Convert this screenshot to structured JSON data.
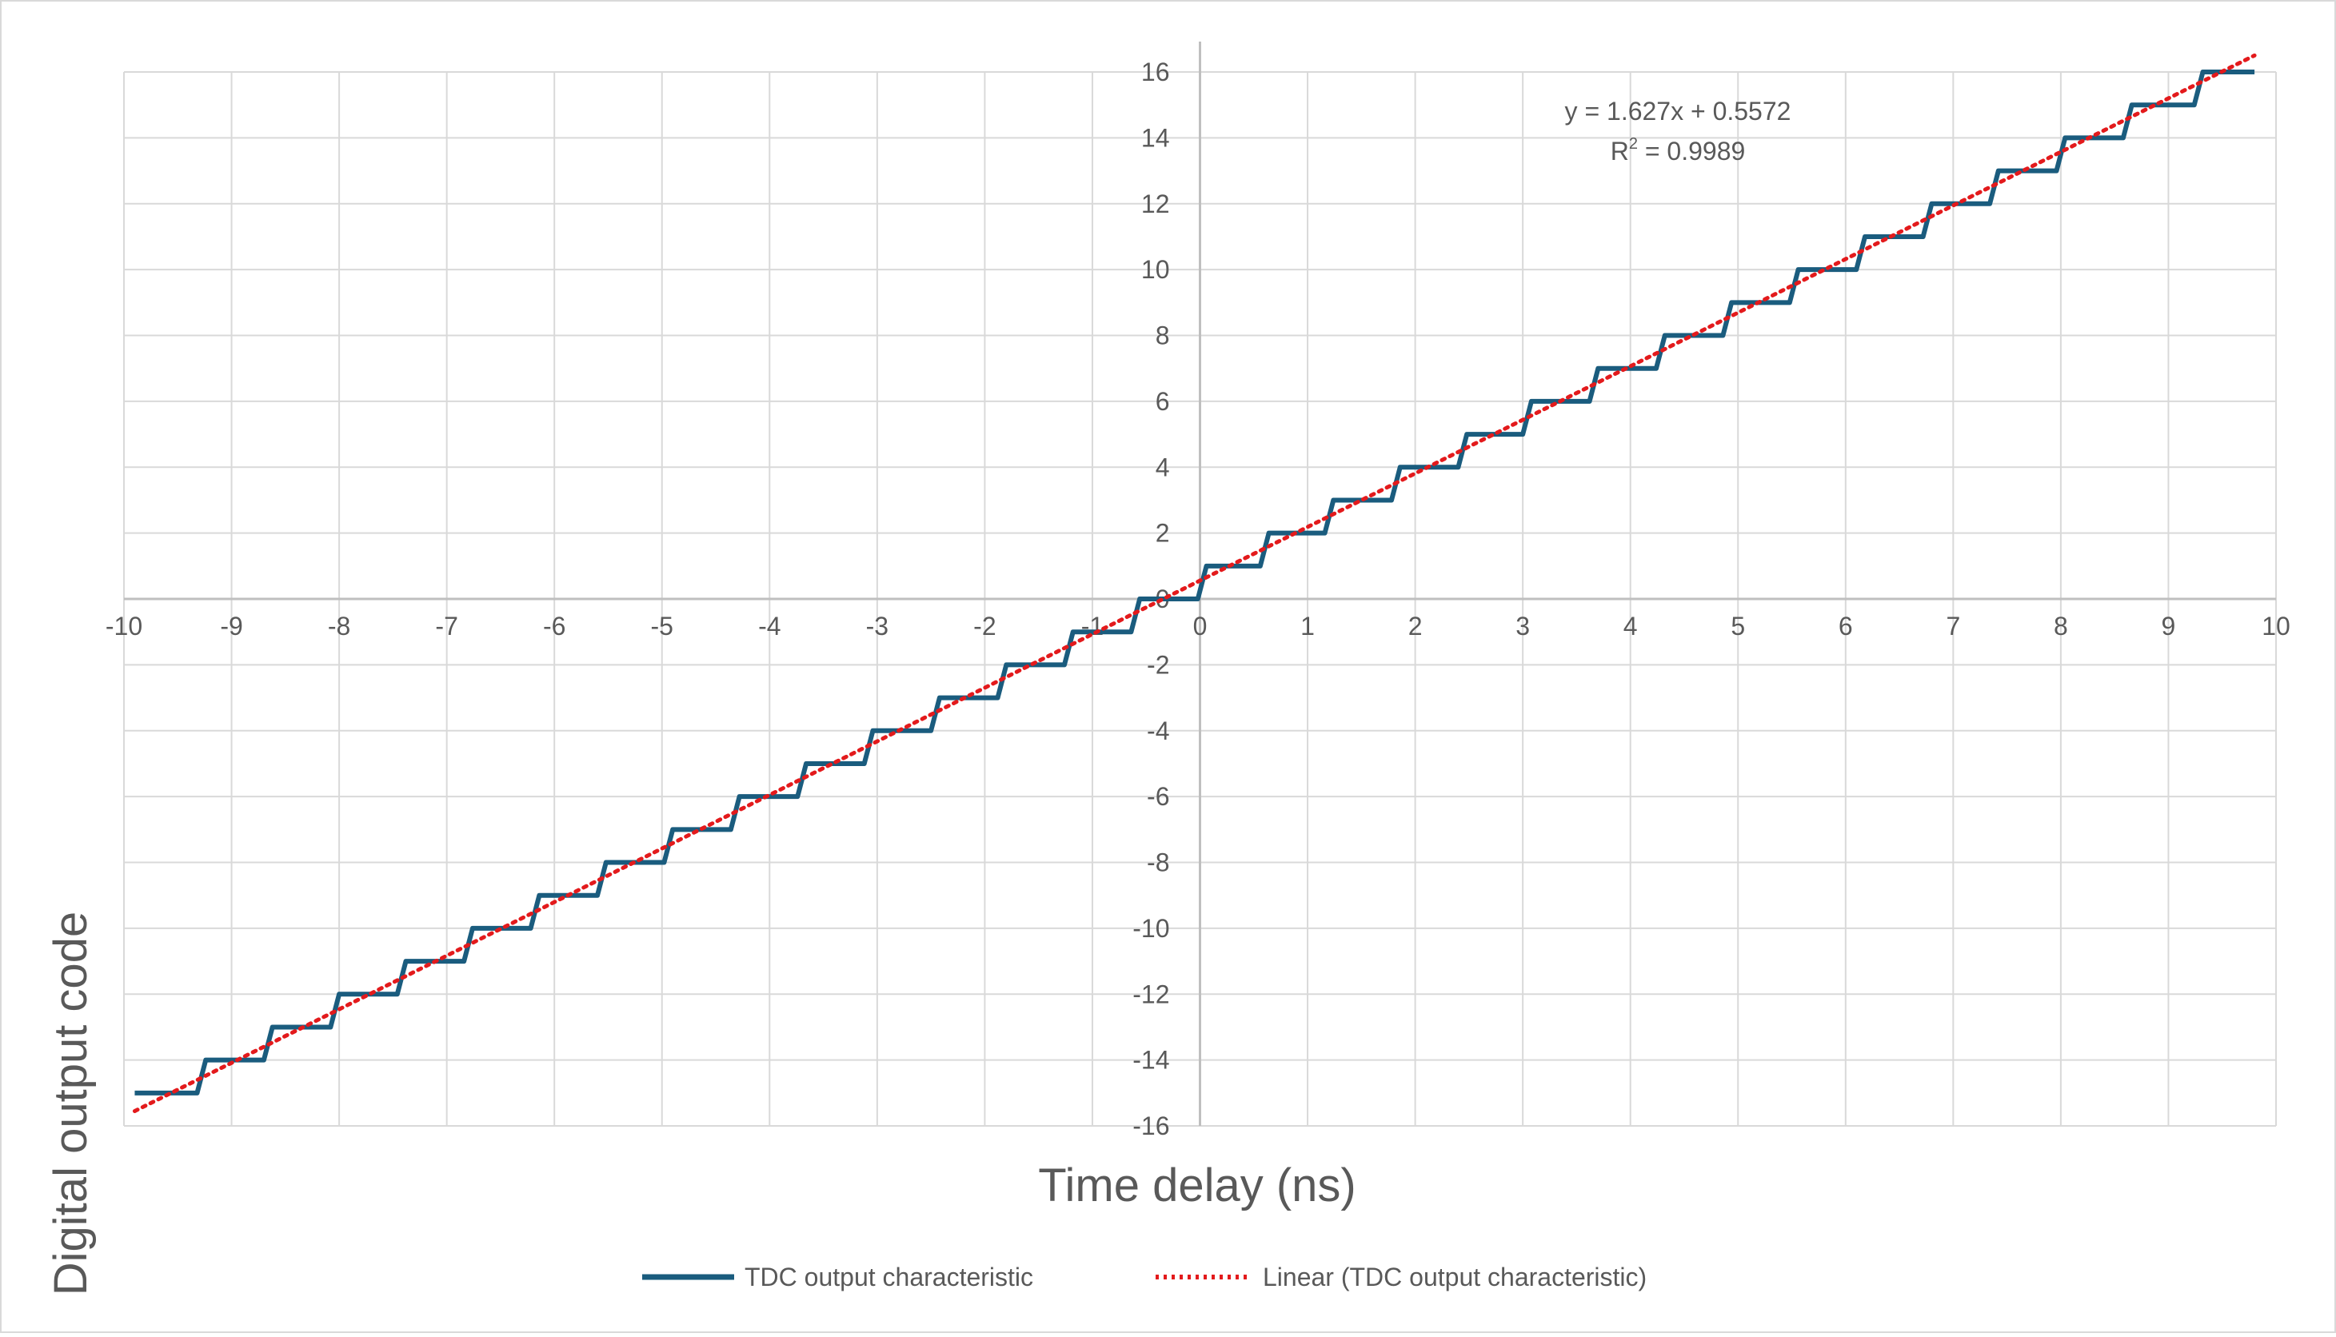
{
  "chart_data": {
    "type": "line",
    "title": "",
    "xlabel": "Time delay (ns)",
    "ylabel": "Digital output code",
    "xlim": [
      -10,
      10
    ],
    "ylim": [
      -16,
      16
    ],
    "x_ticks": [
      "-10",
      "-9",
      "-8",
      "-7",
      "-6",
      "-5",
      "-4",
      "-3",
      "-2",
      "-1",
      "0",
      "1",
      "2",
      "3",
      "4",
      "5",
      "6",
      "7",
      "8",
      "9",
      "10"
    ],
    "y_ticks": [
      "-16",
      "-14",
      "-12",
      "-10",
      "-8",
      "-6",
      "-4",
      "-2",
      "0",
      "2",
      "4",
      "6",
      "8",
      "10",
      "12",
      "14",
      "16"
    ],
    "grid": true,
    "legend_position": "bottom",
    "series": [
      {
        "name": "TDC output characteristic",
        "kind": "step",
        "color": "#1a5c7e",
        "x_start": -9.9,
        "x_end": 9.8,
        "y_start": -15,
        "y_end": 16,
        "step_x": [
          -9.32,
          -8.7,
          -8.08,
          -7.46,
          -6.84,
          -6.22,
          -5.6,
          -4.98,
          -4.36,
          -3.74,
          -3.12,
          -2.5,
          -1.88,
          -1.26,
          -0.64,
          -0.02,
          0.56,
          1.16,
          1.78,
          2.4,
          3.0,
          3.62,
          4.24,
          4.86,
          5.48,
          6.1,
          6.72,
          7.34,
          7.96,
          8.58,
          9.24
        ]
      },
      {
        "name": "Linear (TDC output characteristic)",
        "kind": "trendline",
        "color": "#e31a1c",
        "slope": 1.627,
        "intercept": 0.5572,
        "x_range": [
          -9.9,
          9.8
        ]
      }
    ],
    "annotations": {
      "equation": "y = 1.627x + 0.5572",
      "r2_label": "R",
      "r2_sup": "2",
      "r2_value": " = 0.9989"
    }
  }
}
